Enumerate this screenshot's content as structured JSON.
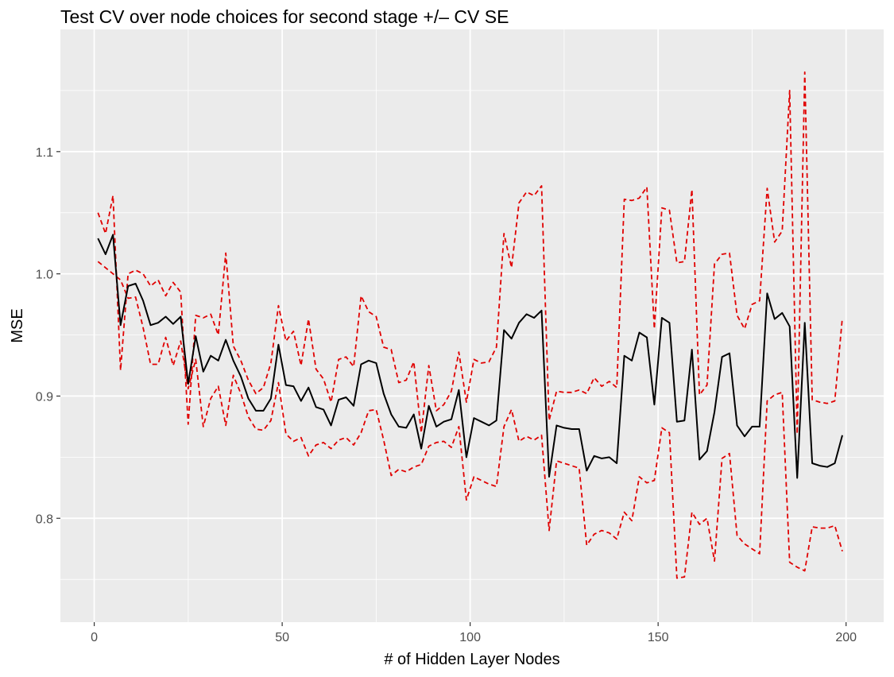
{
  "chart_data": {
    "type": "line",
    "title": "Test CV over node choices for second stage +/– CV SE",
    "xlabel": "# of Hidden Layer Nodes",
    "ylabel": "MSE",
    "xlim": [
      -9,
      210
    ],
    "ylim": [
      0.715,
      1.2
    ],
    "x_ticks": [
      0,
      50,
      100,
      150,
      200
    ],
    "x_tick_labels": [
      "0",
      "50",
      "100",
      "150",
      "200"
    ],
    "y_ticks": [
      0.8,
      0.9,
      1.0,
      1.1
    ],
    "y_tick_labels": [
      "0.8",
      "0.9",
      "1.0",
      "1.1"
    ],
    "grid": true,
    "background": "#EBEBEB",
    "x": [
      1,
      3,
      5,
      7,
      9,
      11,
      13,
      15,
      17,
      19,
      21,
      23,
      25,
      27,
      29,
      31,
      33,
      35,
      37,
      39,
      41,
      43,
      45,
      47,
      49,
      51,
      53,
      55,
      57,
      59,
      61,
      63,
      65,
      67,
      69,
      71,
      73,
      75,
      77,
      79,
      81,
      83,
      85,
      87,
      89,
      91,
      93,
      95,
      97,
      99,
      101,
      103,
      105,
      107,
      109,
      111,
      113,
      115,
      117,
      119,
      121,
      123,
      125,
      127,
      129,
      131,
      133,
      135,
      137,
      139,
      141,
      143,
      145,
      147,
      149,
      151,
      153,
      155,
      157,
      159,
      161,
      163,
      165,
      167,
      169,
      171,
      173,
      175,
      177,
      179,
      181,
      183,
      185,
      187,
      189,
      191,
      193,
      195,
      197,
      199
    ],
    "series": [
      {
        "color": "#000000",
        "dash": "solid",
        "values": [
          1.029,
          1.016,
          1.032,
          0.958,
          0.99,
          0.992,
          0.978,
          0.958,
          0.96,
          0.965,
          0.959,
          0.965,
          0.91,
          0.949,
          0.92,
          0.933,
          0.929,
          0.946,
          0.929,
          0.916,
          0.898,
          0.888,
          0.888,
          0.898,
          0.942,
          0.909,
          0.908,
          0.896,
          0.907,
          0.891,
          0.889,
          0.876,
          0.897,
          0.899,
          0.892,
          0.926,
          0.929,
          0.927,
          0.902,
          0.885,
          0.875,
          0.874,
          0.885,
          0.857,
          0.892,
          0.875,
          0.879,
          0.881,
          0.905,
          0.85,
          0.882,
          0.879,
          0.876,
          0.88,
          0.954,
          0.947,
          0.96,
          0.967,
          0.964,
          0.97,
          0.834,
          0.876,
          0.874,
          0.873,
          0.873,
          0.839,
          0.851,
          0.849,
          0.85,
          0.845,
          0.933,
          0.929,
          0.952,
          0.948,
          0.893,
          0.964,
          0.96,
          0.879,
          0.88,
          0.938,
          0.848,
          0.855,
          0.887,
          0.932,
          0.935,
          0.876,
          0.867,
          0.875,
          0.875,
          0.984,
          0.963,
          0.968,
          0.957,
          0.833,
          0.96,
          0.845,
          0.843,
          0.842,
          0.845,
          0.868
        ]
      },
      {
        "color": "#E00000",
        "dash": "dashed",
        "values": [
          1.05,
          1.033,
          1.064,
          0.921,
          1.0,
          1.003,
          1.0,
          0.99,
          0.995,
          0.982,
          0.993,
          0.985,
          0.877,
          0.966,
          0.964,
          0.967,
          0.95,
          1.017,
          0.941,
          0.929,
          0.913,
          0.902,
          0.907,
          0.927,
          0.974,
          0.945,
          0.953,
          0.925,
          0.963,
          0.922,
          0.914,
          0.895,
          0.93,
          0.932,
          0.924,
          0.982,
          0.969,
          0.965,
          0.94,
          0.938,
          0.911,
          0.913,
          0.928,
          0.87,
          0.925,
          0.888,
          0.893,
          0.904,
          0.936,
          0.895,
          0.93,
          0.927,
          0.928,
          0.94,
          1.033,
          1.005,
          1.058,
          1.067,
          1.064,
          1.072,
          0.88,
          0.904,
          0.903,
          0.903,
          0.905,
          0.902,
          0.915,
          0.908,
          0.912,
          0.907,
          1.061,
          1.06,
          1.062,
          1.071,
          0.955,
          1.054,
          1.052,
          1.009,
          1.01,
          1.069,
          0.901,
          0.909,
          1.008,
          1.016,
          1.017,
          0.966,
          0.955,
          0.975,
          0.978,
          1.07,
          1.026,
          1.035,
          1.15,
          0.869,
          1.165,
          0.897,
          0.895,
          0.894,
          0.896,
          0.964
        ]
      },
      {
        "color": "#E00000",
        "dash": "dashed",
        "values": [
          1.01,
          1.005,
          1.0,
          0.995,
          0.98,
          0.981,
          0.956,
          0.926,
          0.926,
          0.948,
          0.925,
          0.945,
          0.906,
          0.93,
          0.875,
          0.898,
          0.908,
          0.876,
          0.917,
          0.902,
          0.883,
          0.873,
          0.872,
          0.88,
          0.911,
          0.869,
          0.863,
          0.866,
          0.851,
          0.86,
          0.862,
          0.857,
          0.864,
          0.866,
          0.86,
          0.87,
          0.888,
          0.889,
          0.864,
          0.835,
          0.84,
          0.838,
          0.842,
          0.844,
          0.859,
          0.862,
          0.863,
          0.858,
          0.875,
          0.815,
          0.834,
          0.831,
          0.828,
          0.826,
          0.875,
          0.889,
          0.863,
          0.867,
          0.864,
          0.868,
          0.79,
          0.847,
          0.845,
          0.843,
          0.841,
          0.778,
          0.787,
          0.79,
          0.788,
          0.783,
          0.805,
          0.798,
          0.834,
          0.829,
          0.831,
          0.874,
          0.87,
          0.751,
          0.752,
          0.805,
          0.795,
          0.8,
          0.765,
          0.849,
          0.853,
          0.786,
          0.779,
          0.775,
          0.771,
          0.896,
          0.901,
          0.903,
          0.764,
          0.76,
          0.757,
          0.793,
          0.792,
          0.792,
          0.794,
          0.773
        ]
      }
    ]
  }
}
